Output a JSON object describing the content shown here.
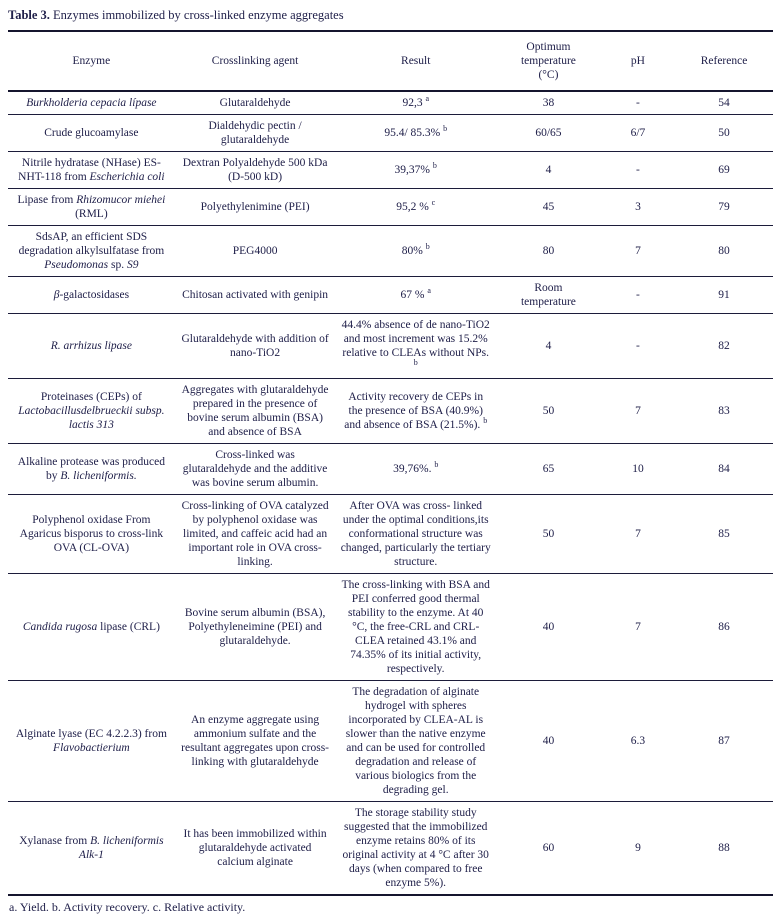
{
  "page": {
    "title_label": "Table 3.",
    "title_text": " Enzymes immobilized by cross-linked enzyme aggregates",
    "footnote": "a. Yield. b. Activity recovery. c. Relative activity.",
    "text_color": "#20204a",
    "rule_color": "#15152e",
    "background_color": "#ffffff"
  },
  "table": {
    "columns": [
      "Enzyme",
      "Crosslinking agent",
      "Result",
      "Optimum\ntemperature\n(°C)",
      "pH",
      "Reference"
    ],
    "rows": [
      {
        "enzyme": [
          {
            "text": "Burkholderia cepacia lípase",
            "italic": true
          }
        ],
        "agent": [
          {
            "text": "Glutaraldehyde"
          }
        ],
        "result": [
          {
            "text": "92,3 "
          },
          {
            "text": "a",
            "sup": true
          }
        ],
        "temp": "38",
        "ph": "-",
        "ref": "54"
      },
      {
        "enzyme": [
          {
            "text": "Crude glucoamylase"
          }
        ],
        "agent": [
          {
            "text": "Dialdehydic pectin / glutaraldehyde"
          }
        ],
        "result": [
          {
            "text": "95.4/ 85.3% "
          },
          {
            "text": "b",
            "sup": true
          }
        ],
        "temp": "60/65",
        "ph": "6/7",
        "ref": "50"
      },
      {
        "enzyme": [
          {
            "text": "Nitrile hydratase (NHase) ES-NHT-118 from "
          },
          {
            "text": "Escherichia coli",
            "italic": true
          }
        ],
        "agent": [
          {
            "text": "Dextran Polyaldehyde 500 kDa (D-500 kD)"
          }
        ],
        "result": [
          {
            "text": "39,37% "
          },
          {
            "text": "b",
            "sup": true
          }
        ],
        "temp": "4",
        "ph": "-",
        "ref": "69"
      },
      {
        "enzyme": [
          {
            "text": "Lipase from "
          },
          {
            "text": "Rhizomucor miehei",
            "italic": true
          },
          {
            "text": " (RML)"
          }
        ],
        "agent": [
          {
            "text": "Polyethylenimine (PEI)"
          }
        ],
        "result": [
          {
            "text": "95,2 % "
          },
          {
            "text": "c",
            "sup": true
          }
        ],
        "temp": "45",
        "ph": "3",
        "ref": "79"
      },
      {
        "enzyme": [
          {
            "text": "SdsAP, an efficient SDS degradation alkylsulfatase from "
          },
          {
            "text": "Pseudomonas",
            "italic": true
          },
          {
            "text": " sp. "
          },
          {
            "text": "S9",
            "italic": true
          }
        ],
        "agent": [
          {
            "text": "PEG4000"
          }
        ],
        "result": [
          {
            "text": "80% "
          },
          {
            "text": "b",
            "sup": true
          }
        ],
        "temp": "80",
        "ph": "7",
        "ref": "80"
      },
      {
        "enzyme": [
          {
            "text": "β",
            "italic": true
          },
          {
            "text": "-galactosidases"
          }
        ],
        "agent": [
          {
            "text": "Chitosan activated with genipin"
          }
        ],
        "result": [
          {
            "text": "67 % "
          },
          {
            "text": "a",
            "sup": true
          }
        ],
        "temp": "Room\ntemperature",
        "ph": "-",
        "ref": "91"
      },
      {
        "enzyme": [
          {
            "text": "R. arrhizus lipase",
            "italic": true
          }
        ],
        "agent": [
          {
            "text": "Glutaraldehyde with addition of nano-TiO2"
          }
        ],
        "result": [
          {
            "text": "44.4% absence of de nano-TiO2 and most increment was 15.2% relative to CLEAs without NPs. "
          },
          {
            "text": "b",
            "sup": true
          }
        ],
        "temp": "4",
        "ph": "-",
        "ref": "82"
      },
      {
        "enzyme": [
          {
            "text": "Proteinases (CEPs) of "
          },
          {
            "text": "Lactobacillusdelbrueckii subsp. lactis 313",
            "italic": true
          }
        ],
        "agent": [
          {
            "text": "Aggregates with glutaraldehyde prepared in the presence of bovine serum albumin (BSA) and absence of BSA"
          }
        ],
        "result": [
          {
            "text": "Activity recovery de CEPs in the presence of BSA (40.9%) and absence of BSA (21.5%). "
          },
          {
            "text": "b",
            "sup": true
          }
        ],
        "temp": "50",
        "ph": "7",
        "ref": "83"
      },
      {
        "enzyme": [
          {
            "text": "Alkaline protease was produced by "
          },
          {
            "text": "B. licheniformis.",
            "italic": true
          }
        ],
        "agent": [
          {
            "text": "Cross-linked was glutaraldehyde and the additive was bovine serum albumin."
          }
        ],
        "result": [
          {
            "text": "39,76%. "
          },
          {
            "text": "b",
            "sup": true
          }
        ],
        "temp": "65",
        "ph": "10",
        "ref": "84"
      },
      {
        "enzyme": [
          {
            "text": "Polyphenol oxidase From Agaricus bisporus to cross-link OVA (CL-OVA)"
          }
        ],
        "agent": [
          {
            "text": "Cross-linking of OVA catalyzed by polyphenol oxidase was limited, and caffeic acid had an important role in OVA cross-linking."
          }
        ],
        "result": [
          {
            "text": "After OVA was cross- linked under the optimal conditions,its conformational structure was changed, particularly the tertiary structure."
          }
        ],
        "temp": "50",
        "ph": "7",
        "ref": "85"
      },
      {
        "enzyme": [
          {
            "text": "Candida rugosa",
            "italic": true
          },
          {
            "text": " lipase (CRL)"
          }
        ],
        "agent": [
          {
            "text": "Bovine serum albumin (BSA), Polyethyleneimine (PEI) and glutaraldehyde."
          }
        ],
        "result": [
          {
            "text": "The cross-linking with BSA and PEI conferred good thermal stability to the enzyme. At 40 °C, the free-CRL and CRL-CLEA retained 43.1% and 74.35% of its initial activity, respectively."
          }
        ],
        "temp": "40",
        "ph": "7",
        "ref": "86"
      },
      {
        "enzyme": [
          {
            "text": "Alginate lyase (EC 4.2.2.3) from "
          },
          {
            "text": "Flavobactierium",
            "italic": true
          }
        ],
        "agent": [
          {
            "text": "An enzyme aggregate using ammonium sulfate and the resultant aggregates upon cross-linking with glutaraldehyde"
          }
        ],
        "result": [
          {
            "text": "The degradation of alginate hydrogel with spheres incorporated by CLEA-AL is slower than the native enzyme and can be used for controlled degradation and release of various biologics from the degrading gel."
          }
        ],
        "temp": "40",
        "ph": "6.3",
        "ref": "87"
      },
      {
        "enzyme": [
          {
            "text": "Xylanase from "
          },
          {
            "text": "B. licheniformis Alk-1",
            "italic": true
          }
        ],
        "agent": [
          {
            "text": "It has been immobilized within glutaraldehyde activated calcium alginate"
          }
        ],
        "result": [
          {
            "text": "The storage stability study suggested that the immobilized enzyme retains 80% of its original activity at 4 °C after 30 days (when compared to free enzyme 5%)."
          }
        ],
        "temp": "60",
        "ph": "9",
        "ref": "88"
      }
    ]
  }
}
